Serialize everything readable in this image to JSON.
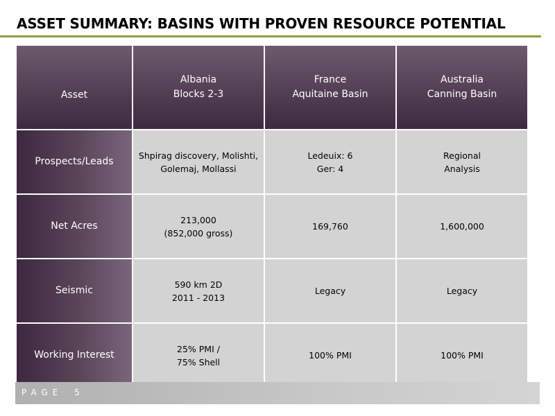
{
  "title": "ASSET SUMMARY: BASINS WITH PROVEN RESOURCE POTENTIAL",
  "colors": {
    "title_rule": "#8ea043",
    "header_dark": "#3e2a40",
    "header_light": "#6e5a6d",
    "cell_gray": "#d3d3d3",
    "footer_gray": "#c8c8c8"
  },
  "table": {
    "header": {
      "label": "Asset",
      "columns": [
        [
          "Albania",
          "Blocks 2-3"
        ],
        [
          "France",
          "Aquitaine Basin"
        ],
        [
          "Australia",
          "Canning Basin"
        ]
      ]
    },
    "rows": [
      {
        "label": "Prospects/Leads",
        "cells": [
          [
            "Shpirag discovery, Molishti,",
            "Golemaj, Mollassi"
          ],
          [
            "Ledeuix: 6",
            "Ger: 4"
          ],
          [
            "Regional",
            "Analysis"
          ]
        ]
      },
      {
        "label": "Net Acres",
        "cells": [
          [
            "213,000",
            "(852,000 gross)"
          ],
          [
            "169,760"
          ],
          [
            "1,600,000"
          ]
        ]
      },
      {
        "label": "Seismic",
        "cells": [
          [
            "590 km 2D",
            "2011 - 2013"
          ],
          [
            "Legacy"
          ],
          [
            "Legacy"
          ]
        ]
      },
      {
        "label": "Working Interest",
        "cells": [
          [
            "25% PMI /",
            "75% Shell"
          ],
          [
            "100% PMI"
          ],
          [
            "100% PMI"
          ]
        ]
      }
    ]
  },
  "footer": {
    "page_word": "PAGE",
    "page_number": "5"
  }
}
